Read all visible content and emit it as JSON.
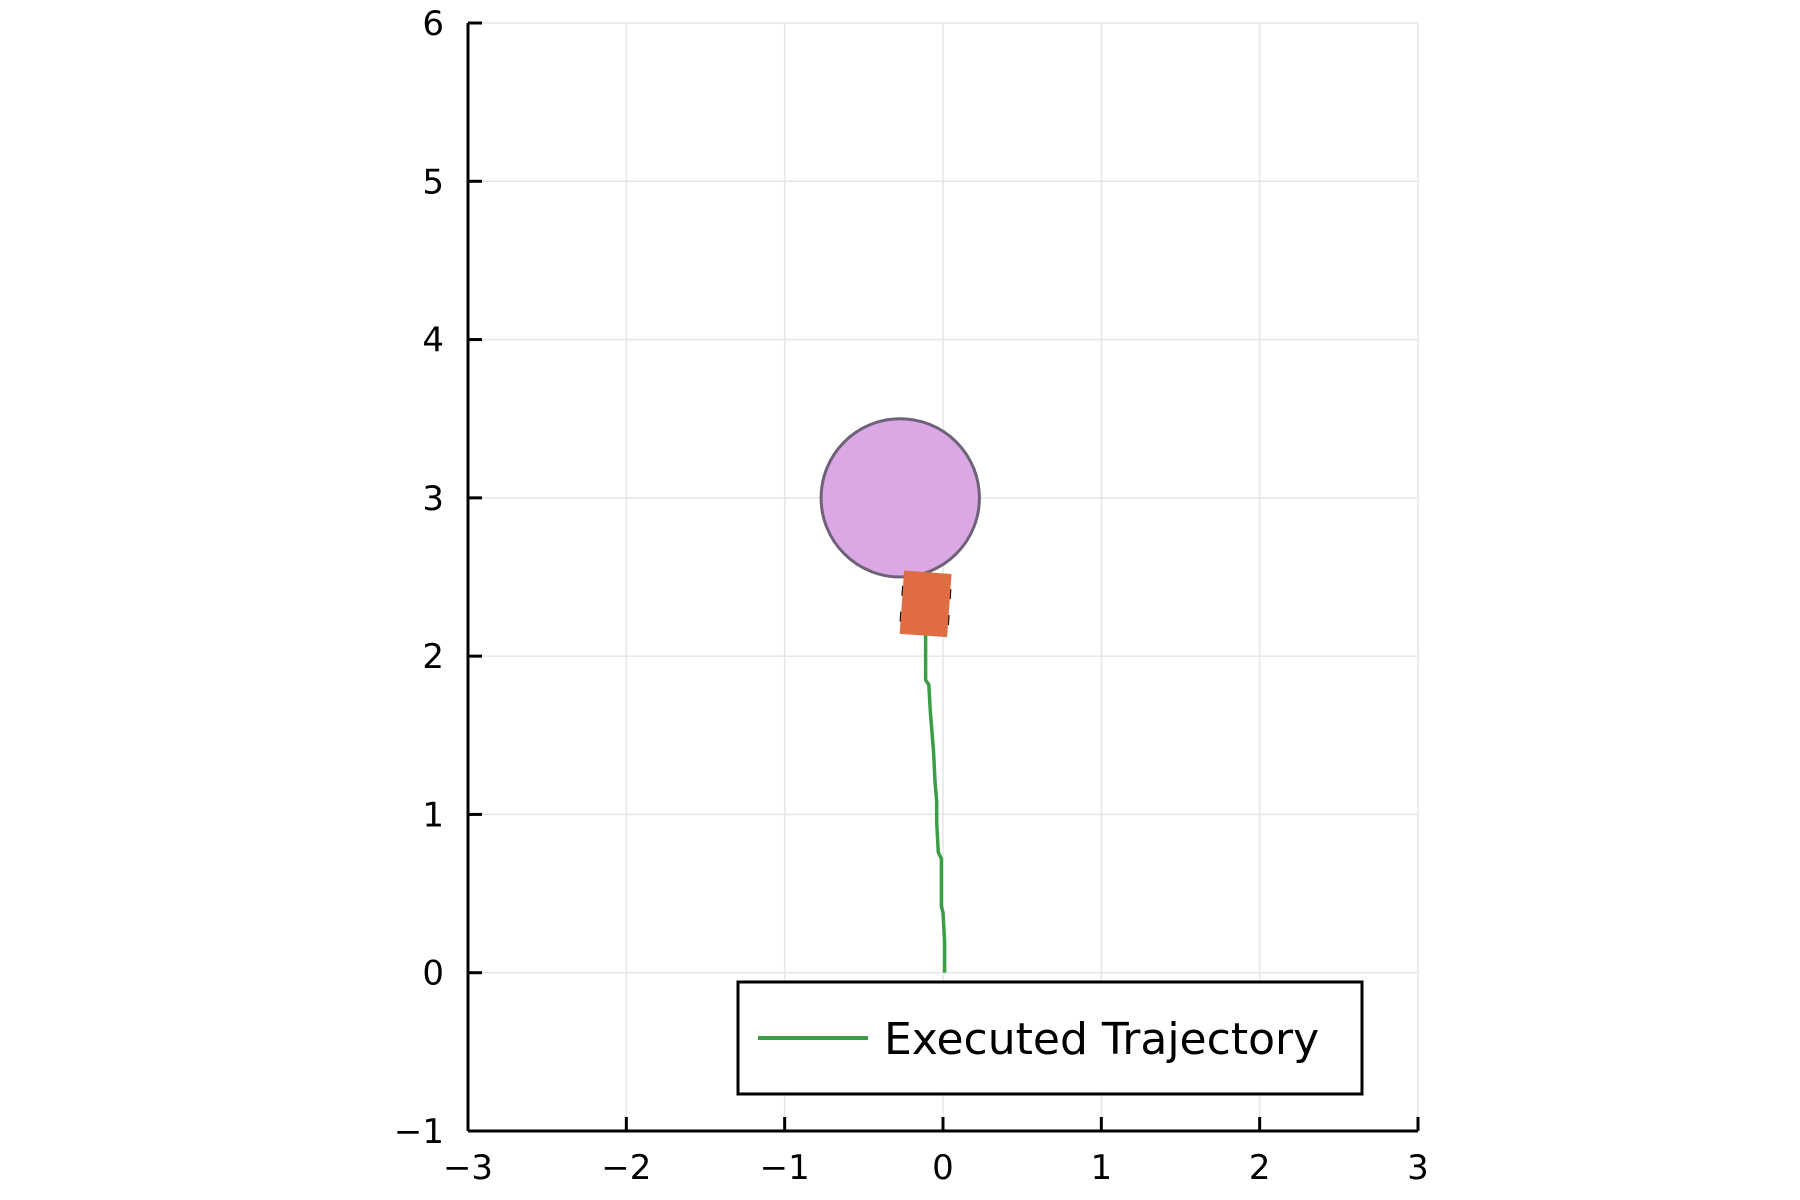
{
  "chart_data": {
    "type": "line",
    "title": "",
    "xlabel": "",
    "ylabel": "",
    "xlim": [
      -3,
      3
    ],
    "ylim": [
      -1,
      6
    ],
    "xticks": [
      -3,
      -2,
      -1,
      0,
      1,
      2,
      3
    ],
    "xtick_labels": [
      "−3",
      "−2",
      "−1",
      "0",
      "1",
      "2",
      "3"
    ],
    "yticks": [
      -1,
      0,
      1,
      2,
      3,
      4,
      5,
      6
    ],
    "ytick_labels": [
      "−1",
      "0",
      "1",
      "2",
      "3",
      "4",
      "5",
      "6"
    ],
    "grid": true,
    "legend_position": "bottom-right",
    "series": [
      {
        "name": "Executed Trajectory",
        "color": "#3a9e47",
        "x": [
          0.01,
          0.01,
          0.0,
          -0.01,
          -0.01,
          -0.01,
          -0.03,
          -0.04,
          -0.04,
          -0.05,
          -0.06,
          -0.08,
          -0.09,
          -0.11,
          -0.11,
          -0.11,
          -0.11,
          -0.12
        ],
        "y": [
          0.0,
          0.2,
          0.38,
          0.42,
          0.6,
          0.72,
          0.76,
          0.95,
          1.08,
          1.2,
          1.4,
          1.65,
          1.82,
          1.85,
          2.0,
          2.15,
          2.25,
          2.35
        ]
      }
    ],
    "obstacle": {
      "shape": "circle",
      "center": [
        -0.27,
        3.0
      ],
      "radius": 0.5,
      "fill_color": "#dba8e5",
      "edge_color": "#6e6278"
    },
    "vehicle": {
      "shape": "rectangle",
      "center": [
        -0.11,
        2.33
      ],
      "width": 0.3,
      "length": 0.4,
      "heading_deg": 86,
      "color": "#e06c42"
    }
  }
}
